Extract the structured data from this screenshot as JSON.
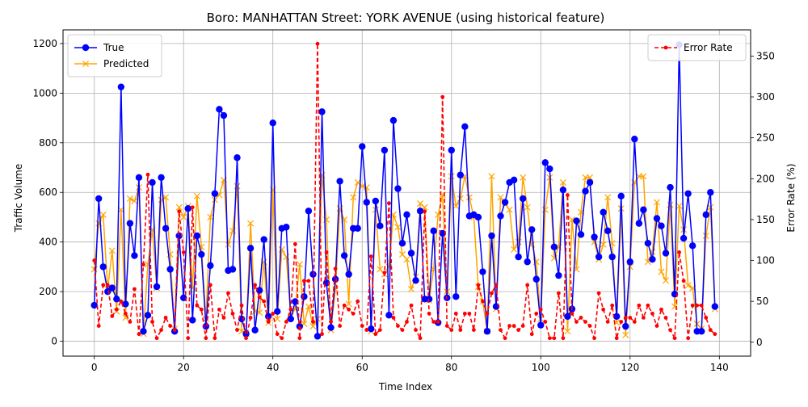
{
  "chart_data": {
    "type": "line",
    "title": "Boro: MANHATTAN Street: YORK AVENUE (using historical feature)",
    "xlabel": "Time Index",
    "ylabel": "Traffic Volume",
    "y2label": "Error Rate (%)",
    "xlim": [
      -7,
      147
    ],
    "ylim": [
      -60,
      1255
    ],
    "y2lim": [
      -17,
      382
    ],
    "xticks": [
      0,
      20,
      40,
      60,
      80,
      100,
      120,
      140
    ],
    "yticks": [
      0,
      200,
      400,
      600,
      800,
      1000,
      1200
    ],
    "y2ticks": [
      0,
      50,
      100,
      150,
      200,
      250,
      300,
      350
    ],
    "grid": true,
    "legend_left_placement": "upper-left",
    "legend_right_placement": "upper-right",
    "colors": {
      "true": "#0000ff",
      "predicted": "#ffa500",
      "error": "#ff0000"
    },
    "x": [
      0,
      1,
      2,
      3,
      4,
      5,
      6,
      7,
      8,
      9,
      10,
      11,
      12,
      13,
      14,
      15,
      16,
      17,
      18,
      19,
      20,
      21,
      22,
      23,
      24,
      25,
      26,
      27,
      28,
      29,
      30,
      31,
      32,
      33,
      34,
      35,
      36,
      37,
      38,
      39,
      40,
      41,
      42,
      43,
      44,
      45,
      46,
      47,
      48,
      49,
      50,
      51,
      52,
      53,
      54,
      55,
      56,
      57,
      58,
      59,
      60,
      61,
      62,
      63,
      64,
      65,
      66,
      67,
      68,
      69,
      70,
      71,
      72,
      73,
      74,
      75,
      76,
      77,
      78,
      79,
      80,
      81,
      82,
      83,
      84,
      85,
      86,
      87,
      88,
      89,
      90,
      91,
      92,
      93,
      94,
      95,
      96,
      97,
      98,
      99,
      100,
      101,
      102,
      103,
      104,
      105,
      106,
      107,
      108,
      109,
      110,
      111,
      112,
      113,
      114,
      115,
      116,
      117,
      118,
      119,
      120,
      121,
      122,
      123,
      124,
      125,
      126,
      127,
      128,
      129,
      130,
      131,
      132,
      133,
      134,
      135,
      136,
      137,
      138,
      139
    ],
    "series": [
      {
        "name": "True",
        "axis": "left",
        "marker": "circle",
        "linestyle": "solid",
        "values": [
          145,
          575,
          300,
          200,
          215,
          170,
          1025,
          150,
          475,
          345,
          660,
          40,
          105,
          640,
          220,
          660,
          455,
          290,
          40,
          425,
          175,
          535,
          85,
          425,
          350,
          60,
          305,
          595,
          935,
          910,
          285,
          290,
          740,
          90,
          30,
          375,
          45,
          205,
          410,
          100,
          880,
          120,
          455,
          460,
          90,
          160,
          60,
          180,
          525,
          270,
          20,
          925,
          235,
          55,
          250,
          645,
          345,
          270,
          455,
          455,
          785,
          560,
          50,
          565,
          465,
          770,
          105,
          890,
          615,
          395,
          510,
          355,
          245,
          525,
          170,
          170,
          445,
          75,
          435,
          175,
          770,
          180,
          670,
          865,
          505,
          510,
          500,
          280,
          40,
          425,
          140,
          505,
          560,
          640,
          650,
          340,
          575,
          320,
          450,
          250,
          65,
          720,
          695,
          380,
          265,
          610,
          100,
          130,
          485,
          430,
          605,
          640,
          420,
          340,
          520,
          445,
          340,
          100,
          585,
          60,
          320,
          815,
          475,
          530,
          395,
          330,
          495,
          465,
          355,
          620,
          190,
          1195,
          415,
          595,
          385,
          40,
          40,
          510,
          600,
          140
        ]
      },
      {
        "name": "Predicted",
        "axis": "left",
        "marker": "x",
        "linestyle": "solid",
        "values": [
          290,
          475,
          510,
          210,
          365,
          120,
          530,
          95,
          575,
          565,
          620,
          30,
          310,
          450,
          215,
          570,
          580,
          350,
          50,
          540,
          500,
          545,
          215,
          585,
          380,
          90,
          500,
          570,
          590,
          650,
          390,
          445,
          625,
          40,
          30,
          475,
          120,
          115,
          320,
          75,
          610,
          90,
          370,
          340,
          100,
          130,
          310,
          70,
          140,
          60,
          90,
          670,
          490,
          45,
          210,
          535,
          490,
          150,
          580,
          640,
          625,
          620,
          40,
          530,
          290,
          270,
          300,
          510,
          460,
          350,
          330,
          210,
          260,
          555,
          540,
          165,
          290,
          510,
          590,
          200,
          665,
          545,
          575,
          665,
          580,
          500,
          220,
          160,
          40,
          665,
          130,
          580,
          555,
          530,
          370,
          400,
          660,
          540,
          390,
          320,
          90,
          530,
          660,
          335,
          380,
          640,
          40,
          490,
          290,
          520,
          660,
          660,
          400,
          330,
          390,
          580,
          395,
          75,
          535,
          25,
          300,
          640,
          665,
          665,
          320,
          360,
          560,
          280,
          245,
          550,
          140,
          545,
          450,
          225,
          215,
          70,
          50,
          425,
          540,
          130
        ]
      },
      {
        "name": "Error Rate",
        "axis": "right",
        "marker": "dot",
        "linestyle": "dashed",
        "values": [
          100,
          20,
          70,
          70,
          32,
          40,
          50,
          35,
          25,
          65,
          10,
          95,
          205,
          25,
          5,
          15,
          30,
          20,
          15,
          160,
          110,
          5,
          165,
          45,
          40,
          5,
          70,
          5,
          40,
          30,
          60,
          35,
          15,
          45,
          5,
          30,
          70,
          55,
          50,
          25,
          35,
          10,
          5,
          25,
          40,
          120,
          5,
          75,
          75,
          25,
          365,
          10,
          110,
          25,
          90,
          20,
          45,
          40,
          35,
          50,
          20,
          15,
          105,
          10,
          15,
          85,
          170,
          30,
          20,
          15,
          25,
          45,
          15,
          5,
          160,
          35,
          25,
          25,
          300,
          20,
          15,
          35,
          15,
          35,
          35,
          15,
          70,
          50,
          35,
          60,
          70,
          15,
          5,
          20,
          20,
          15,
          20,
          70,
          10,
          35,
          40,
          25,
          5,
          5,
          60,
          5,
          180,
          35,
          25,
          30,
          25,
          20,
          5,
          60,
          40,
          25,
          45,
          5,
          25,
          30,
          30,
          25,
          45,
          30,
          45,
          35,
          20,
          40,
          30,
          15,
          5,
          110,
          75,
          5,
          45,
          45,
          45,
          30,
          15,
          10
        ]
      }
    ]
  }
}
